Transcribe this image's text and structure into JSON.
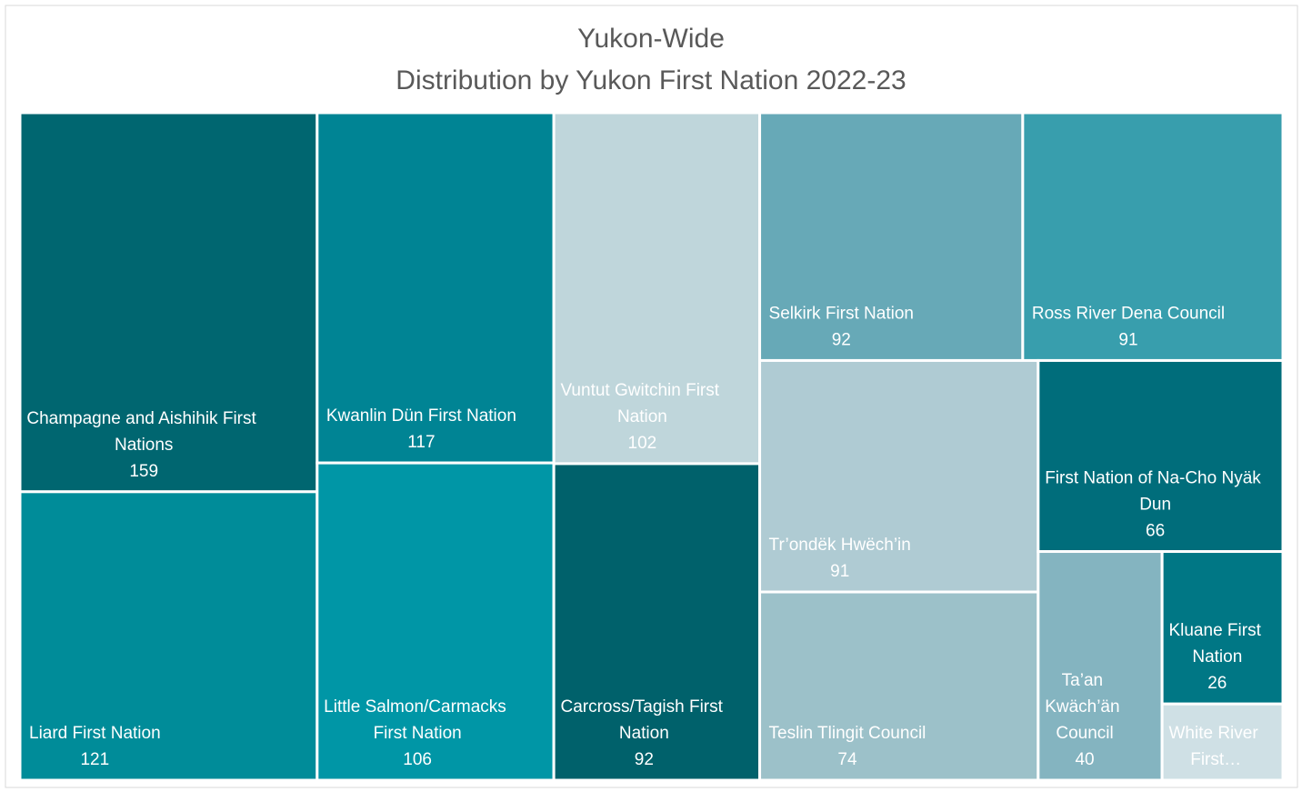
{
  "chart_data": {
    "type": "treemap",
    "title": "Yukon-Wide",
    "subtitle": "Distribution by Yukon First Nation 2022-23",
    "categories": [
      "Champagne and Aishihik First Nations",
      "Liard First Nation",
      "Kwanlin Dün First Nation",
      "Little Salmon/Carmacks First Nation",
      "Vuntut Gwitchin First Nation",
      "Carcross/Tagish First Nation",
      "Selkirk First Nation",
      "Ross River Dena Council",
      "Tr’ondëk Hwëch’in",
      "Teslin Tlingit Council",
      "First Nation of Na-Cho Nyäk Dun",
      "Ta’an Kwäch’än Council",
      "Kluane First Nation",
      "White River First…"
    ],
    "values": [
      159,
      121,
      117,
      106,
      102,
      92,
      92,
      91,
      91,
      74,
      66,
      40,
      26,
      13
    ],
    "colors": [
      "#006670",
      "#008c99",
      "#008494",
      "#0096a6",
      "#bfd6db",
      "#00616b",
      "#67a9b7",
      "#389ead",
      "#afcbd3",
      "#9cc1c9",
      "#006d7b",
      "#84b4c0",
      "#007785",
      "#cfe0e5"
    ]
  }
}
